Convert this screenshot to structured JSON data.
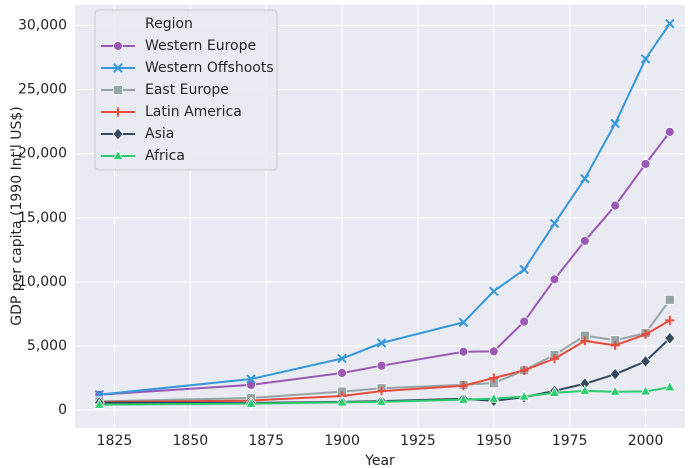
{
  "chart_data": {
    "type": "line",
    "x_label": "Year",
    "y_label": "GDP per capita (1990 Int'l US$)",
    "legend_title": "Region",
    "legend": "upper left",
    "grid": true,
    "x": [
      1820,
      1870,
      1900,
      1913,
      1940,
      1950,
      1960,
      1970,
      1980,
      1990,
      2000,
      2008
    ],
    "series": [
      {
        "name": "Western Europe",
        "color": "#9b59b6",
        "marker": "circle",
        "values": [
          1200,
          1960,
          2890,
          3460,
          4550,
          4580,
          6900,
          10200,
          13200,
          15950,
          19200,
          21700
        ]
      },
      {
        "name": "Western Offshoots",
        "color": "#3498db",
        "marker": "x",
        "values": [
          1200,
          2420,
          4020,
          5230,
          6840,
          9270,
          10960,
          14560,
          18060,
          22350,
          27400,
          30150
        ]
      },
      {
        "name": "East Europe",
        "color": "#95a5a6",
        "marker": "square",
        "values": [
          680,
          940,
          1440,
          1700,
          1970,
          2100,
          3100,
          4300,
          5800,
          5450,
          6000,
          8600
        ]
      },
      {
        "name": "Latin America",
        "color": "#e74c3c",
        "marker": "plus",
        "values": [
          630,
          740,
          1100,
          1480,
          1900,
          2500,
          3100,
          4000,
          5400,
          5050,
          5900,
          7000
        ]
      },
      {
        "name": "Asia",
        "color": "#34495e",
        "marker": "diamond",
        "values": [
          580,
          560,
          640,
          700,
          880,
          720,
          1000,
          1500,
          2050,
          2800,
          3800,
          5600
        ]
      },
      {
        "name": "Africa",
        "color": "#2ecc71",
        "marker": "triangle",
        "values": [
          420,
          500,
          600,
          640,
          810,
          890,
          1050,
          1350,
          1500,
          1430,
          1450,
          1780
        ]
      }
    ],
    "xlim": [
      1812,
      2013
    ],
    "ylim": [
      -1400,
      31600
    ],
    "xticks": [
      1825,
      1850,
      1875,
      1900,
      1925,
      1950,
      1975,
      2000
    ],
    "yticks": [
      0,
      {
        "value": 5000,
        "label": "5,000"
      },
      {
        "value": 10000,
        "label": "10,000"
      },
      {
        "value": 15000,
        "label": "15,000"
      },
      {
        "value": 20000,
        "label": "20,000"
      },
      {
        "value": 25000,
        "label": "25,000"
      },
      {
        "value": 30000,
        "label": "30,000"
      }
    ]
  }
}
